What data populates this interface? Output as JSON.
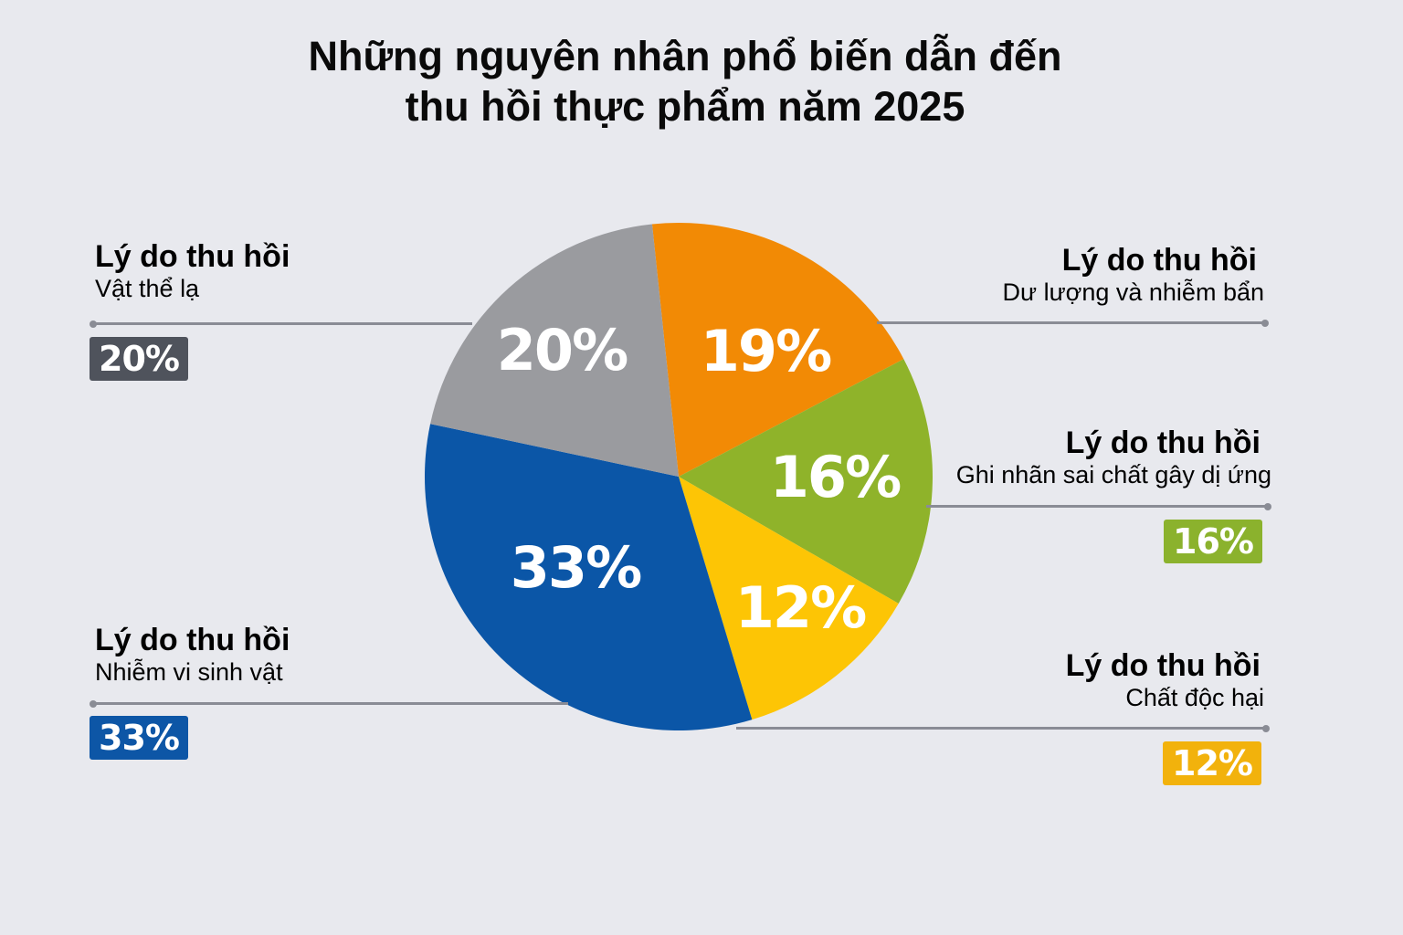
{
  "title": {
    "line1": "Những nguyên nhân phổ biến dẫn đến",
    "line2": "thu hồi thực phẩm năm 2025"
  },
  "callouts": {
    "foreign": {
      "head": "Lý do thu hồi",
      "sub": "Vật thể lạ",
      "badge": "20%",
      "color": "#4f535c"
    },
    "residue": {
      "head": "Lý do thu hồi",
      "sub": "Dư lượng và nhiễm bẩn"
    },
    "allergen": {
      "head": "Lý do thu hồi",
      "sub": "Ghi nhãn sai chất gây dị ứng",
      "badge": "16%",
      "color": "#8bb22d"
    },
    "microbial": {
      "head": "Lý do thu hồi",
      "sub": "Nhiễm vi sinh vật",
      "badge": "33%",
      "color": "#0d56a6"
    },
    "toxic": {
      "head": "Lý do thu hồi",
      "sub": "Chất độc hại",
      "badge": "12%",
      "color": "#f2b20c"
    }
  },
  "slices": [
    {
      "label": "19%",
      "color": "#f28a05"
    },
    {
      "label": "16%",
      "color": "#8fb32a"
    },
    {
      "label": "12%",
      "color": "#fdc505"
    },
    {
      "label": "33%",
      "color": "#0b56a7"
    },
    {
      "label": "20%",
      "color": "#9a9b9f"
    }
  ],
  "chart_data": {
    "type": "pie",
    "title": "Những nguyên nhân phổ biến dẫn đến thu hồi thực phẩm năm 2025",
    "categories": [
      "Dư lượng và nhiễm bẩn",
      "Ghi nhãn sai chất gây dị ứng",
      "Chất độc hại",
      "Nhiễm vi sinh vật",
      "Vật thể lạ"
    ],
    "values": [
      19,
      16,
      12,
      33,
      20
    ],
    "unit": "%",
    "colors": [
      "#f28a05",
      "#8fb32a",
      "#fdc505",
      "#0b56a7",
      "#9a9b9f"
    ],
    "start_angle_deg": -6,
    "direction": "clockwise",
    "legend": "callouts with 'Lý do thu hồi' headings",
    "data_labels": [
      "19%",
      "16%",
      "12%",
      "33%",
      "20%"
    ]
  }
}
